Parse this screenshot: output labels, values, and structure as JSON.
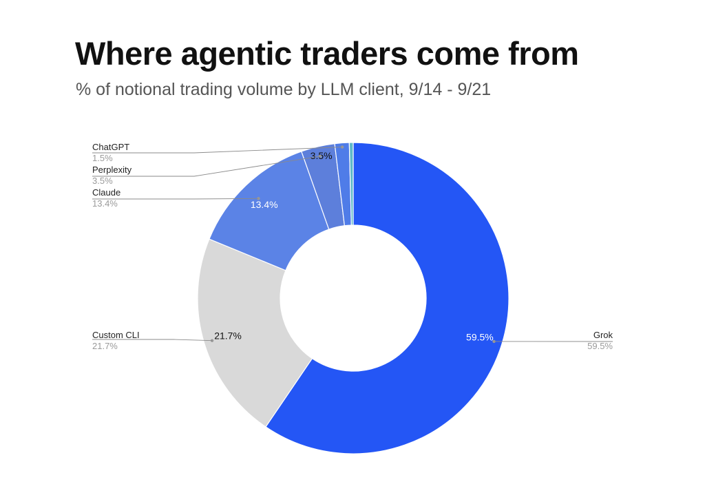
{
  "title": "Where agentic traders come from",
  "subtitle": "% of notional trading volume by LLM client, 9/14 - 9/21",
  "chart_data": {
    "type": "pie",
    "donut": true,
    "unit": "%",
    "slices": [
      {
        "name": "Grok",
        "value": 59.5,
        "label": "59.5%",
        "color": "#2456f5",
        "label_color": "#ffffff"
      },
      {
        "name": "Custom CLI",
        "value": 21.7,
        "label": "21.7%",
        "color": "#d9d9d9",
        "label_color": "#111111"
      },
      {
        "name": "Claude",
        "value": 13.4,
        "label": "13.4%",
        "color": "#5b83e6",
        "label_color": "#ffffff"
      },
      {
        "name": "Perplexity",
        "value": 3.5,
        "label": "3.5%",
        "color": "#5d7fdb",
        "label_color": "#111111"
      },
      {
        "name": "ChatGPT",
        "value": 1.5,
        "label": "1.5%",
        "color": "#4f7ce8",
        "label_color": ""
      },
      {
        "name": "",
        "value": 0.4,
        "label": "",
        "color": "#5fb9c9",
        "label_color": ""
      }
    ],
    "legend_placement": "callouts"
  }
}
